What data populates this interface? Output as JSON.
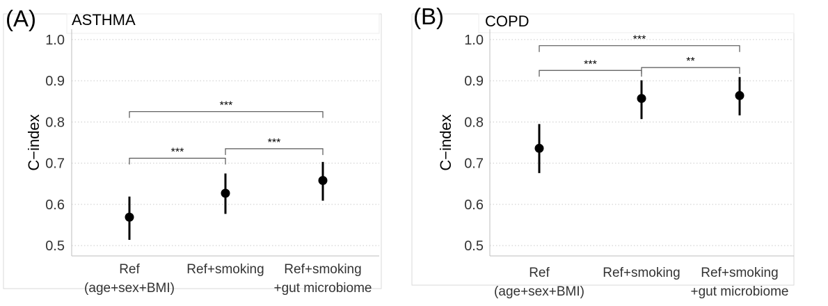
{
  "chart_data": [
    {
      "type": "scatter",
      "panel_label": "(A)",
      "title": "ASTHMA",
      "ylabel": "C−index",
      "ylim": [
        0.475,
        1.025
      ],
      "yticks": [
        "0.5",
        "0.6",
        "0.7",
        "0.8",
        "0.9",
        "1.0"
      ],
      "grid": "horizontal dotted",
      "categories": [
        [
          "Ref",
          "(age+sex+BMI)"
        ],
        [
          "Ref+smoking"
        ],
        [
          "Ref+smoking",
          "+gut microbiome"
        ]
      ],
      "series": [
        {
          "values": [
            0.569,
            0.627,
            0.658
          ],
          "lower": [
            0.514,
            0.577,
            0.609
          ],
          "upper": [
            0.619,
            0.675,
            0.703
          ]
        }
      ],
      "comparisons": [
        {
          "from": 0,
          "to": 1,
          "y": 0.712,
          "label": "***"
        },
        {
          "from": 1,
          "to": 2,
          "y": 0.735,
          "label": "***"
        },
        {
          "from": 0,
          "to": 2,
          "y": 0.825,
          "label": "***"
        }
      ]
    },
    {
      "type": "scatter",
      "panel_label": "(B)",
      "title": "COPD",
      "ylabel": "C−index",
      "ylim": [
        0.475,
        1.025
      ],
      "yticks": [
        "0.5",
        "0.6",
        "0.7",
        "0.8",
        "0.9",
        "1.0"
      ],
      "grid": "horizontal dotted",
      "categories": [
        [
          "Ref",
          "(age+sex+BMI)"
        ],
        [
          "Ref+smoking"
        ],
        [
          "Ref+smoking",
          "+gut microbiome"
        ]
      ],
      "series": [
        {
          "values": [
            0.736,
            0.857,
            0.864
          ],
          "lower": [
            0.676,
            0.807,
            0.816
          ],
          "upper": [
            0.795,
            0.901,
            0.909
          ]
        }
      ],
      "comparisons": [
        {
          "from": 0,
          "to": 1,
          "y": 0.925,
          "label": "***"
        },
        {
          "from": 1,
          "to": 2,
          "y": 0.932,
          "label": "**"
        },
        {
          "from": 0,
          "to": 2,
          "y": 0.985,
          "label": "***"
        }
      ]
    }
  ]
}
